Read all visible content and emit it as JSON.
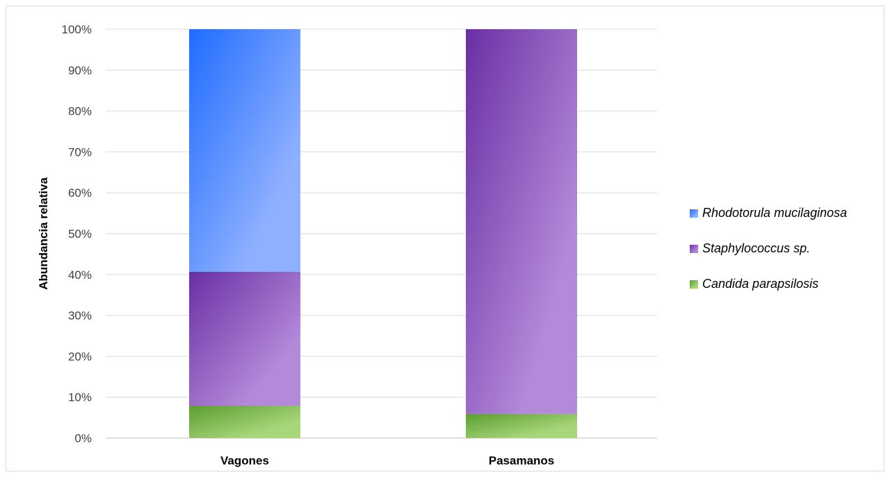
{
  "chart_data": {
    "type": "bar",
    "stacked": true,
    "percent": true,
    "categories": [
      "Vagones",
      "Pasamanos"
    ],
    "series": [
      {
        "name": "Candida parapsilosis",
        "values": [
          8,
          6
        ],
        "color": "#a8d67a",
        "color_dark": "#5a9e2e"
      },
      {
        "name": "Staphylococcus sp.",
        "values": [
          32.7,
          94
        ],
        "color": "#b389d9",
        "color_dark": "#6a2fa3"
      },
      {
        "name": "Rhodotorula mucilaginosa",
        "values": [
          59.3,
          0
        ],
        "color": "#8fb0ff",
        "color_dark": "#1f6cff"
      }
    ],
    "yticks": [
      "0%",
      "10%",
      "20%",
      "30%",
      "40%",
      "50%",
      "60%",
      "70%",
      "80%",
      "90%",
      "100%"
    ],
    "ylabel": "Abundancia relativa",
    "xlabel": "",
    "ylim": [
      0,
      100
    ],
    "grid": true,
    "legend_position": "right",
    "legend_order": [
      "Rhodotorula mucilaginosa",
      "Staphylococcus sp.",
      "Candida parapsilosis"
    ]
  }
}
